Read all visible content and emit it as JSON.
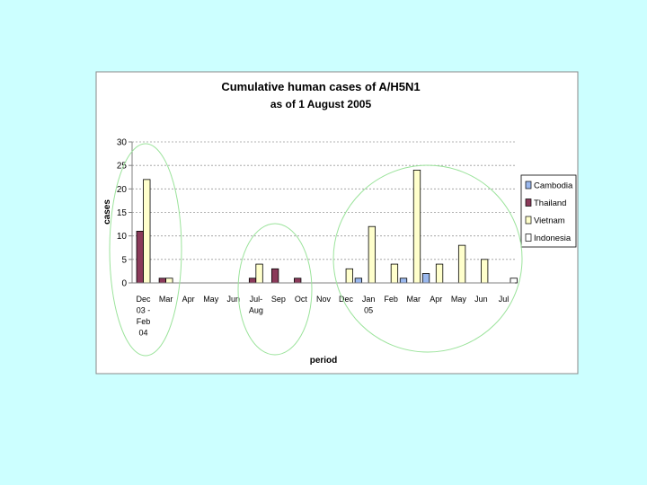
{
  "colors": {
    "background": "#ccffff",
    "Cambodia": "#9ab8ee",
    "Thailand": "#8b3a5a",
    "Vietnam": "#ffffcc",
    "Indonesia": "#ffffff",
    "circle": "#9be39b"
  },
  "chart_data": {
    "type": "bar",
    "title": "Cumulative human cases of A/H5N1",
    "subtitle": "as of 1 August 2005",
    "xlabel": "period",
    "ylabel": "cases",
    "ylim": [
      0,
      30
    ],
    "yticks": [
      0,
      5,
      10,
      15,
      20,
      25,
      30
    ],
    "grid": true,
    "legend_position": "right",
    "categories": [
      [
        "Dec",
        "03 -",
        "Feb",
        "04"
      ],
      [
        "Mar"
      ],
      [
        "Apr"
      ],
      [
        "May"
      ],
      [
        "Jun"
      ],
      [
        "Jul-",
        "Aug"
      ],
      [
        "Sep"
      ],
      [
        "Oct"
      ],
      [
        "Nov"
      ],
      [
        "Dec"
      ],
      [
        "Jan",
        "05"
      ],
      [
        "Feb"
      ],
      [
        "Mar"
      ],
      [
        "Apr"
      ],
      [
        "May"
      ],
      [
        "Jun"
      ],
      [
        "Jul"
      ]
    ],
    "series": [
      {
        "name": "Cambodia",
        "values": [
          0,
          0,
          0,
          0,
          0,
          0,
          0,
          0,
          0,
          0,
          1,
          0,
          1,
          2,
          0,
          0,
          0
        ]
      },
      {
        "name": "Thailand",
        "values": [
          11,
          1,
          0,
          0,
          0,
          1,
          3,
          1,
          0,
          0,
          0,
          0,
          0,
          0,
          0,
          0,
          0
        ]
      },
      {
        "name": "Vietnam",
        "values": [
          22,
          1,
          0,
          0,
          0,
          4,
          0,
          0,
          0,
          3,
          12,
          4,
          24,
          4,
          8,
          5,
          0
        ]
      },
      {
        "name": "Indonesia",
        "values": [
          0,
          0,
          0,
          0,
          0,
          0,
          0,
          0,
          0,
          0,
          0,
          0,
          0,
          0,
          0,
          0,
          1
        ]
      }
    ]
  }
}
